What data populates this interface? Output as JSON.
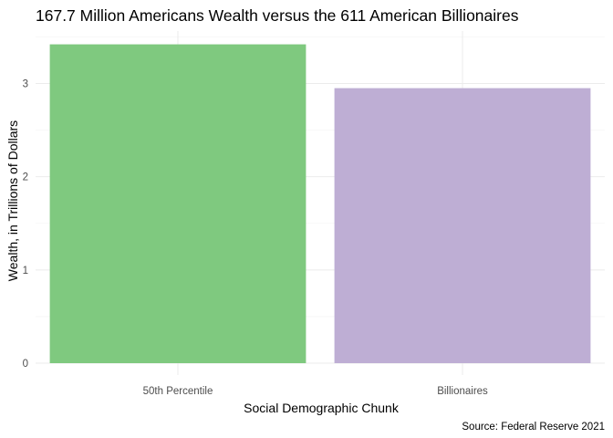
{
  "chart_data": {
    "type": "bar",
    "title": "167.7 Million Americans Wealth versus the 611 American Billionaires",
    "xlabel": "Social Demographic Chunk",
    "ylabel": "Wealth, in Trillions of Dollars",
    "caption": "Source: Federal Reserve 2021",
    "categories": [
      "50th Percentile",
      "Billionaires"
    ],
    "values": [
      3.42,
      2.95
    ],
    "bar_colors": [
      "#7fc97f",
      "#beaed4"
    ],
    "yticks": [
      0,
      1,
      2,
      3
    ],
    "ylim": [
      0,
      3.42
    ],
    "grid": true,
    "legend": "none"
  }
}
